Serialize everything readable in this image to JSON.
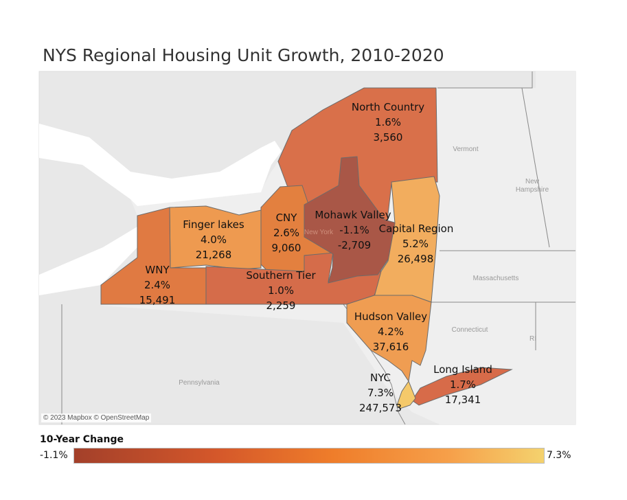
{
  "title": "NYS Regional Housing Unit Growth, 2010-2020",
  "attribution": "© 2023 Mapbox © OpenStreetMap",
  "basemap_labels": {
    "vermont": "Vermont",
    "new_hampshire_1": "New",
    "new_hampshire_2": "Hampshire",
    "massachusetts": "Massachusetts",
    "connecticut": "Connecticut",
    "ri": "RI",
    "pennsylvania": "Pennsylvania",
    "new_york": "New York"
  },
  "legend": {
    "title": "10-Year Change",
    "min": "-1.1%",
    "max": "7.3%",
    "min_color": "#a3402a",
    "max_color": "#f4d26e"
  },
  "regions": [
    {
      "name": "North Country",
      "pct": "1.6%",
      "units": "3,560",
      "color": "#d9704a"
    },
    {
      "name": "CNY",
      "pct": "2.6%",
      "units": "9,060",
      "color": "#e3803f"
    },
    {
      "name": "Finger lakes",
      "pct": "4.0%",
      "units": "21,268",
      "color": "#ee9a50"
    },
    {
      "name": "WNY",
      "pct": "2.4%",
      "units": "15,491",
      "color": "#e07a42"
    },
    {
      "name": "Southern Tier",
      "pct": "1.0%",
      "units": "2,259",
      "color": "#d56c4a"
    },
    {
      "name": "Mohawk Valley",
      "pct": "-1.1%",
      "units": "-2,709",
      "color": "#a95747"
    },
    {
      "name": "Capital Region",
      "pct": "5.2%",
      "units": "26,498",
      "color": "#f2ad5e"
    },
    {
      "name": "Hudson Valley",
      "pct": "4.2%",
      "units": "37,616",
      "color": "#ef9d52"
    },
    {
      "name": "Long Island",
      "pct": "1.7%",
      "units": "17,341",
      "color": "#d76b49"
    },
    {
      "name": "NYC",
      "pct": "7.3%",
      "units": "247,573",
      "color": "#f5c96a"
    }
  ]
}
